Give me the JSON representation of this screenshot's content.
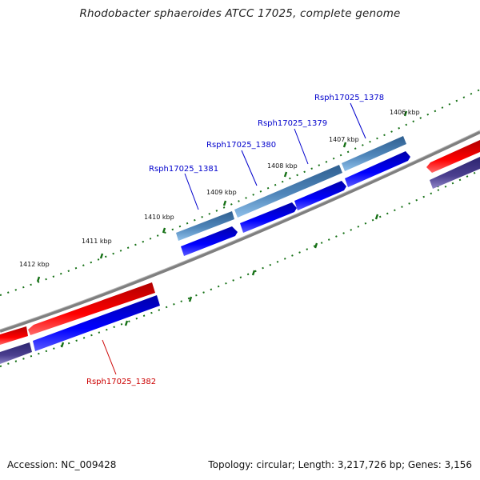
{
  "header": {
    "title": "Rhodobacter sphaeroides ATCC 17025, complete genome"
  },
  "footer": {
    "accession": "Accession: NC_009428",
    "topology": "Topology: circular; Length: 3,217,726 bp; Genes: 3,156"
  },
  "scale": {
    "ticks": [
      "1412 kbp",
      "1411 kbp",
      "1410 kbp",
      "1409 kbp",
      "1408 kbp",
      "1407 kbp",
      "1406 kbp"
    ]
  },
  "genes": [
    {
      "name": "Rsph17025_1378",
      "color": "#0000cc"
    },
    {
      "name": "Rsph17025_1379",
      "color": "#0000cc"
    },
    {
      "name": "Rsph17025_1380",
      "color": "#0000cc"
    },
    {
      "name": "Rsph17025_1381",
      "color": "#0000cc"
    },
    {
      "name": "Rsph17025_1382",
      "color": "#cc0000"
    }
  ],
  "colors": {
    "tick_marks": "#157015",
    "backbone": "#808080",
    "gene_forward_dark": "#3a6a98",
    "gene_forward_light": "#6fa6d8",
    "cds_forward": "#0000ee",
    "gene_reverse": "#ee0000",
    "cds_reverse": "#0000ee",
    "purple_track": "#4b3f8f",
    "label_blue": "#0000cc",
    "label_red": "#cc0000"
  }
}
